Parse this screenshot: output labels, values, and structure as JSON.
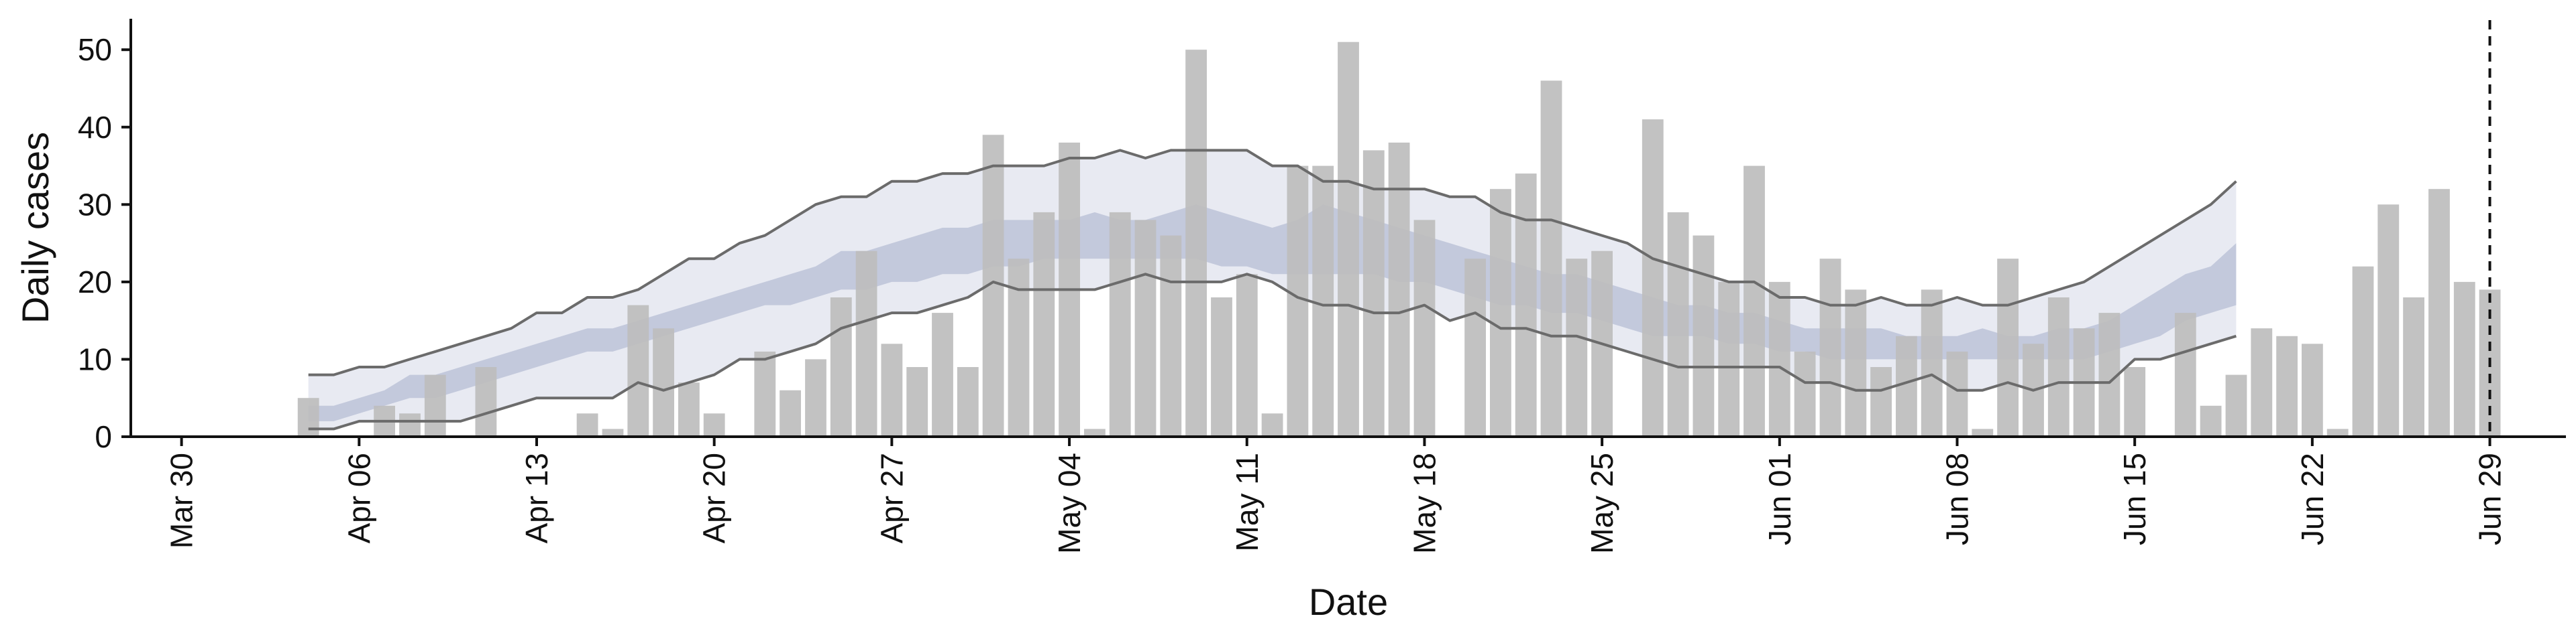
{
  "chart_data": {
    "type": "bar",
    "title": "",
    "xlabel": "Date",
    "ylabel": "Daily cases",
    "ylim": [
      0,
      54
    ],
    "xlim": [
      "2020-03-28",
      "2020-07-02"
    ],
    "grid": false,
    "legend": "none",
    "x_ticks": [
      "2020-03-30",
      "2020-04-06",
      "2020-04-13",
      "2020-04-20",
      "2020-04-27",
      "2020-05-04",
      "2020-05-11",
      "2020-05-18",
      "2020-05-25",
      "2020-06-01",
      "2020-06-08",
      "2020-06-15",
      "2020-06-22",
      "2020-06-29"
    ],
    "x_tick_labels": [
      "Mar 30",
      "Apr 06",
      "Apr 13",
      "Apr 20",
      "Apr 27",
      "May 04",
      "May 11",
      "May 18",
      "May 25",
      "Jun 01",
      "Jun 08",
      "Jun 15",
      "Jun 22",
      "Jun 29"
    ],
    "y_ticks": [
      0,
      10,
      20,
      30,
      40,
      50
    ],
    "y_tick_labels": [
      "0",
      "10",
      "20",
      "30",
      "40",
      "50"
    ],
    "vline": "2020-06-29",
    "colors": {
      "bars": "#bdbdbd",
      "outer_band": "#e8eaf2",
      "inner_band": "#c3c9dc",
      "envelope_lines": "#6b6b6b",
      "axis": "#111111"
    },
    "bars": {
      "x": [
        "2020-04-04",
        "2020-04-05",
        "2020-04-06",
        "2020-04-07",
        "2020-04-08",
        "2020-04-09",
        "2020-04-10",
        "2020-04-11",
        "2020-04-12",
        "2020-04-13",
        "2020-04-14",
        "2020-04-15",
        "2020-04-16",
        "2020-04-17",
        "2020-04-18",
        "2020-04-19",
        "2020-04-20",
        "2020-04-21",
        "2020-04-22",
        "2020-04-23",
        "2020-04-24",
        "2020-04-25",
        "2020-04-26",
        "2020-04-27",
        "2020-04-28",
        "2020-04-29",
        "2020-04-30",
        "2020-05-01",
        "2020-05-02",
        "2020-05-03",
        "2020-05-04",
        "2020-05-05",
        "2020-05-06",
        "2020-05-07",
        "2020-05-08",
        "2020-05-09",
        "2020-05-10",
        "2020-05-11",
        "2020-05-12",
        "2020-05-13",
        "2020-05-14",
        "2020-05-15",
        "2020-05-16",
        "2020-05-17",
        "2020-05-18",
        "2020-05-19",
        "2020-05-20",
        "2020-05-21",
        "2020-05-22",
        "2020-05-23",
        "2020-05-24",
        "2020-05-25",
        "2020-05-26",
        "2020-05-27",
        "2020-05-28",
        "2020-05-29",
        "2020-05-30",
        "2020-05-31",
        "2020-06-01",
        "2020-06-02",
        "2020-06-03",
        "2020-06-04",
        "2020-06-05",
        "2020-06-06",
        "2020-06-07",
        "2020-06-08",
        "2020-06-09",
        "2020-06-10",
        "2020-06-11",
        "2020-06-12",
        "2020-06-13",
        "2020-06-14",
        "2020-06-15",
        "2020-06-16",
        "2020-06-17",
        "2020-06-18",
        "2020-06-19",
        "2020-06-20",
        "2020-06-21",
        "2020-06-22",
        "2020-06-23",
        "2020-06-24",
        "2020-06-25",
        "2020-06-26",
        "2020-06-27",
        "2020-06-28",
        "2020-06-29"
      ],
      "values": [
        5,
        0,
        0,
        4,
        3,
        8,
        0,
        9,
        0,
        0,
        0,
        3,
        1,
        17,
        14,
        7,
        3,
        0,
        11,
        6,
        10,
        18,
        24,
        12,
        9,
        16,
        9,
        39,
        23,
        29,
        38,
        1,
        29,
        28,
        26,
        50,
        18,
        21,
        3,
        35,
        35,
        51,
        37,
        38,
        28,
        0,
        23,
        32,
        34,
        46,
        23,
        24,
        0,
        41,
        29,
        26,
        20,
        35,
        20,
        11,
        23,
        19,
        9,
        13,
        19,
        11,
        1,
        23,
        12,
        18,
        14,
        16,
        9,
        0,
        16,
        4,
        8,
        14,
        13,
        12,
        1,
        22,
        30,
        18,
        32,
        20,
        19
      ]
    },
    "band_x": [
      "2020-04-04",
      "2020-04-05",
      "2020-04-06",
      "2020-04-07",
      "2020-04-08",
      "2020-04-09",
      "2020-04-10",
      "2020-04-11",
      "2020-04-12",
      "2020-04-13",
      "2020-04-14",
      "2020-04-15",
      "2020-04-16",
      "2020-04-17",
      "2020-04-18",
      "2020-04-19",
      "2020-04-20",
      "2020-04-21",
      "2020-04-22",
      "2020-04-23",
      "2020-04-24",
      "2020-04-25",
      "2020-04-26",
      "2020-04-27",
      "2020-04-28",
      "2020-04-29",
      "2020-04-30",
      "2020-05-01",
      "2020-05-02",
      "2020-05-03",
      "2020-05-04",
      "2020-05-05",
      "2020-05-06",
      "2020-05-07",
      "2020-05-08",
      "2020-05-09",
      "2020-05-10",
      "2020-05-11",
      "2020-05-12",
      "2020-05-13",
      "2020-05-14",
      "2020-05-15",
      "2020-05-16",
      "2020-05-17",
      "2020-05-18",
      "2020-05-19",
      "2020-05-20",
      "2020-05-21",
      "2020-05-22",
      "2020-05-23",
      "2020-05-24",
      "2020-05-25",
      "2020-05-26",
      "2020-05-27",
      "2020-05-28",
      "2020-05-29",
      "2020-05-30",
      "2020-05-31",
      "2020-06-01",
      "2020-06-02",
      "2020-06-03",
      "2020-06-04",
      "2020-06-05",
      "2020-06-06",
      "2020-06-07",
      "2020-06-08",
      "2020-06-09",
      "2020-06-10",
      "2020-06-11",
      "2020-06-12",
      "2020-06-13",
      "2020-06-14",
      "2020-06-15",
      "2020-06-16",
      "2020-06-17",
      "2020-06-18",
      "2020-06-19"
    ],
    "band_outer_upper": [
      8,
      8,
      9,
      9,
      10,
      11,
      12,
      13,
      14,
      16,
      16,
      18,
      18,
      19,
      21,
      23,
      23,
      25,
      26,
      28,
      30,
      31,
      31,
      33,
      33,
      34,
      34,
      35,
      35,
      35,
      36,
      36,
      37,
      36,
      37,
      37,
      37,
      37,
      35,
      35,
      33,
      33,
      32,
      32,
      32,
      31,
      31,
      29,
      28,
      28,
      27,
      26,
      25,
      23,
      22,
      21,
      20,
      20,
      18,
      18,
      17,
      17,
      18,
      17,
      17,
      18,
      17,
      17,
      18,
      19,
      20,
      22,
      24,
      26,
      28,
      30,
      33
    ],
    "band_inner_upper": [
      4,
      4,
      5,
      6,
      8,
      8,
      9,
      10,
      11,
      12,
      13,
      14,
      14,
      15,
      16,
      17,
      18,
      19,
      20,
      21,
      22,
      24,
      24,
      25,
      26,
      27,
      27,
      28,
      28,
      28,
      28,
      29,
      28,
      28,
      29,
      30,
      29,
      28,
      27,
      28,
      30,
      29,
      28,
      27,
      26,
      25,
      24,
      23,
      22,
      21,
      21,
      20,
      19,
      18,
      17,
      17,
      16,
      16,
      15,
      14,
      14,
      14,
      14,
      13,
      13,
      13,
      14,
      13,
      13,
      14,
      14,
      15,
      17,
      19,
      21,
      22,
      25
    ],
    "band_inner_lower": [
      2,
      2,
      3,
      4,
      5,
      5,
      6,
      7,
      8,
      9,
      10,
      11,
      11,
      12,
      13,
      14,
      15,
      16,
      17,
      17,
      18,
      19,
      19,
      20,
      20,
      21,
      21,
      22,
      22,
      23,
      23,
      23,
      23,
      23,
      23,
      23,
      22,
      22,
      21,
      21,
      21,
      21,
      21,
      20,
      20,
      19,
      18,
      17,
      17,
      16,
      16,
      15,
      14,
      13,
      13,
      13,
      12,
      12,
      11,
      11,
      10,
      10,
      10,
      10,
      10,
      10,
      10,
      10,
      10,
      10,
      10,
      11,
      12,
      13,
      15,
      16,
      17
    ],
    "band_outer_lower": [
      1,
      1,
      2,
      2,
      2,
      2,
      2,
      3,
      4,
      5,
      5,
      5,
      5,
      7,
      6,
      7,
      8,
      10,
      10,
      11,
      12,
      14,
      15,
      16,
      16,
      17,
      18,
      20,
      19,
      19,
      19,
      19,
      20,
      21,
      20,
      20,
      20,
      21,
      20,
      18,
      17,
      17,
      16,
      16,
      17,
      15,
      16,
      14,
      14,
      13,
      13,
      12,
      11,
      10,
      9,
      9,
      9,
      9,
      9,
      7,
      7,
      6,
      6,
      7,
      8,
      6,
      6,
      7,
      6,
      7,
      7,
      7,
      10,
      10,
      11,
      12,
      13
    ]
  }
}
